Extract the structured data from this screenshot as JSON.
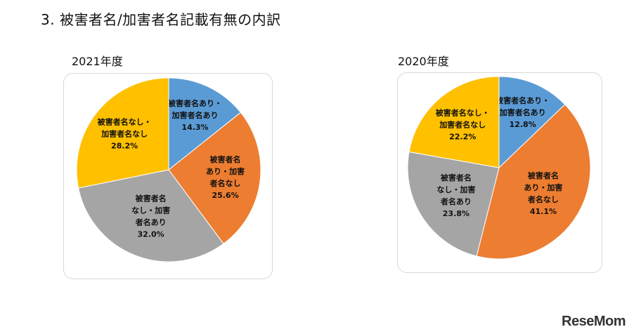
{
  "title": "3. 被害者名/加害者名記載有無の内訳",
  "logo": "ReseMom",
  "chart_data": [
    {
      "type": "pie",
      "title": "2021年度",
      "slices": [
        {
          "label": [
            "被害者名あり・",
            "加害者名あり"
          ],
          "value": 14.3,
          "value_text": "14.3%",
          "color": "#5B9BD5"
        },
        {
          "label": [
            "被害者名",
            "あり・加害",
            "者名なし"
          ],
          "value": 25.6,
          "value_text": "25.6%",
          "color": "#ED7D31"
        },
        {
          "label": [
            "被害者名",
            "なし・加害",
            "者名あり"
          ],
          "value": 32.0,
          "value_text": "32.0%",
          "color": "#A5A5A5"
        },
        {
          "label": [
            "被害者名なし・",
            "加害者名なし"
          ],
          "value": 28.2,
          "value_text": "28.2%",
          "color": "#FFC000"
        }
      ]
    },
    {
      "type": "pie",
      "title": "2020年度",
      "slices": [
        {
          "label": [
            "被害者名あり・",
            "加害者名あり"
          ],
          "value": 12.8,
          "value_text": "12.8%",
          "color": "#5B9BD5"
        },
        {
          "label": [
            "被害者名",
            "あり・加害",
            "者名なし"
          ],
          "value": 41.1,
          "value_text": "41.1%",
          "color": "#ED7D31"
        },
        {
          "label": [
            "被害者名",
            "なし・加害",
            "者名あり"
          ],
          "value": 23.8,
          "value_text": "23.8%",
          "color": "#A5A5A5"
        },
        {
          "label": [
            "被害者名なし・",
            "加害者名なし"
          ],
          "value": 22.2,
          "value_text": "22.2%",
          "color": "#FFC000"
        }
      ]
    }
  ]
}
